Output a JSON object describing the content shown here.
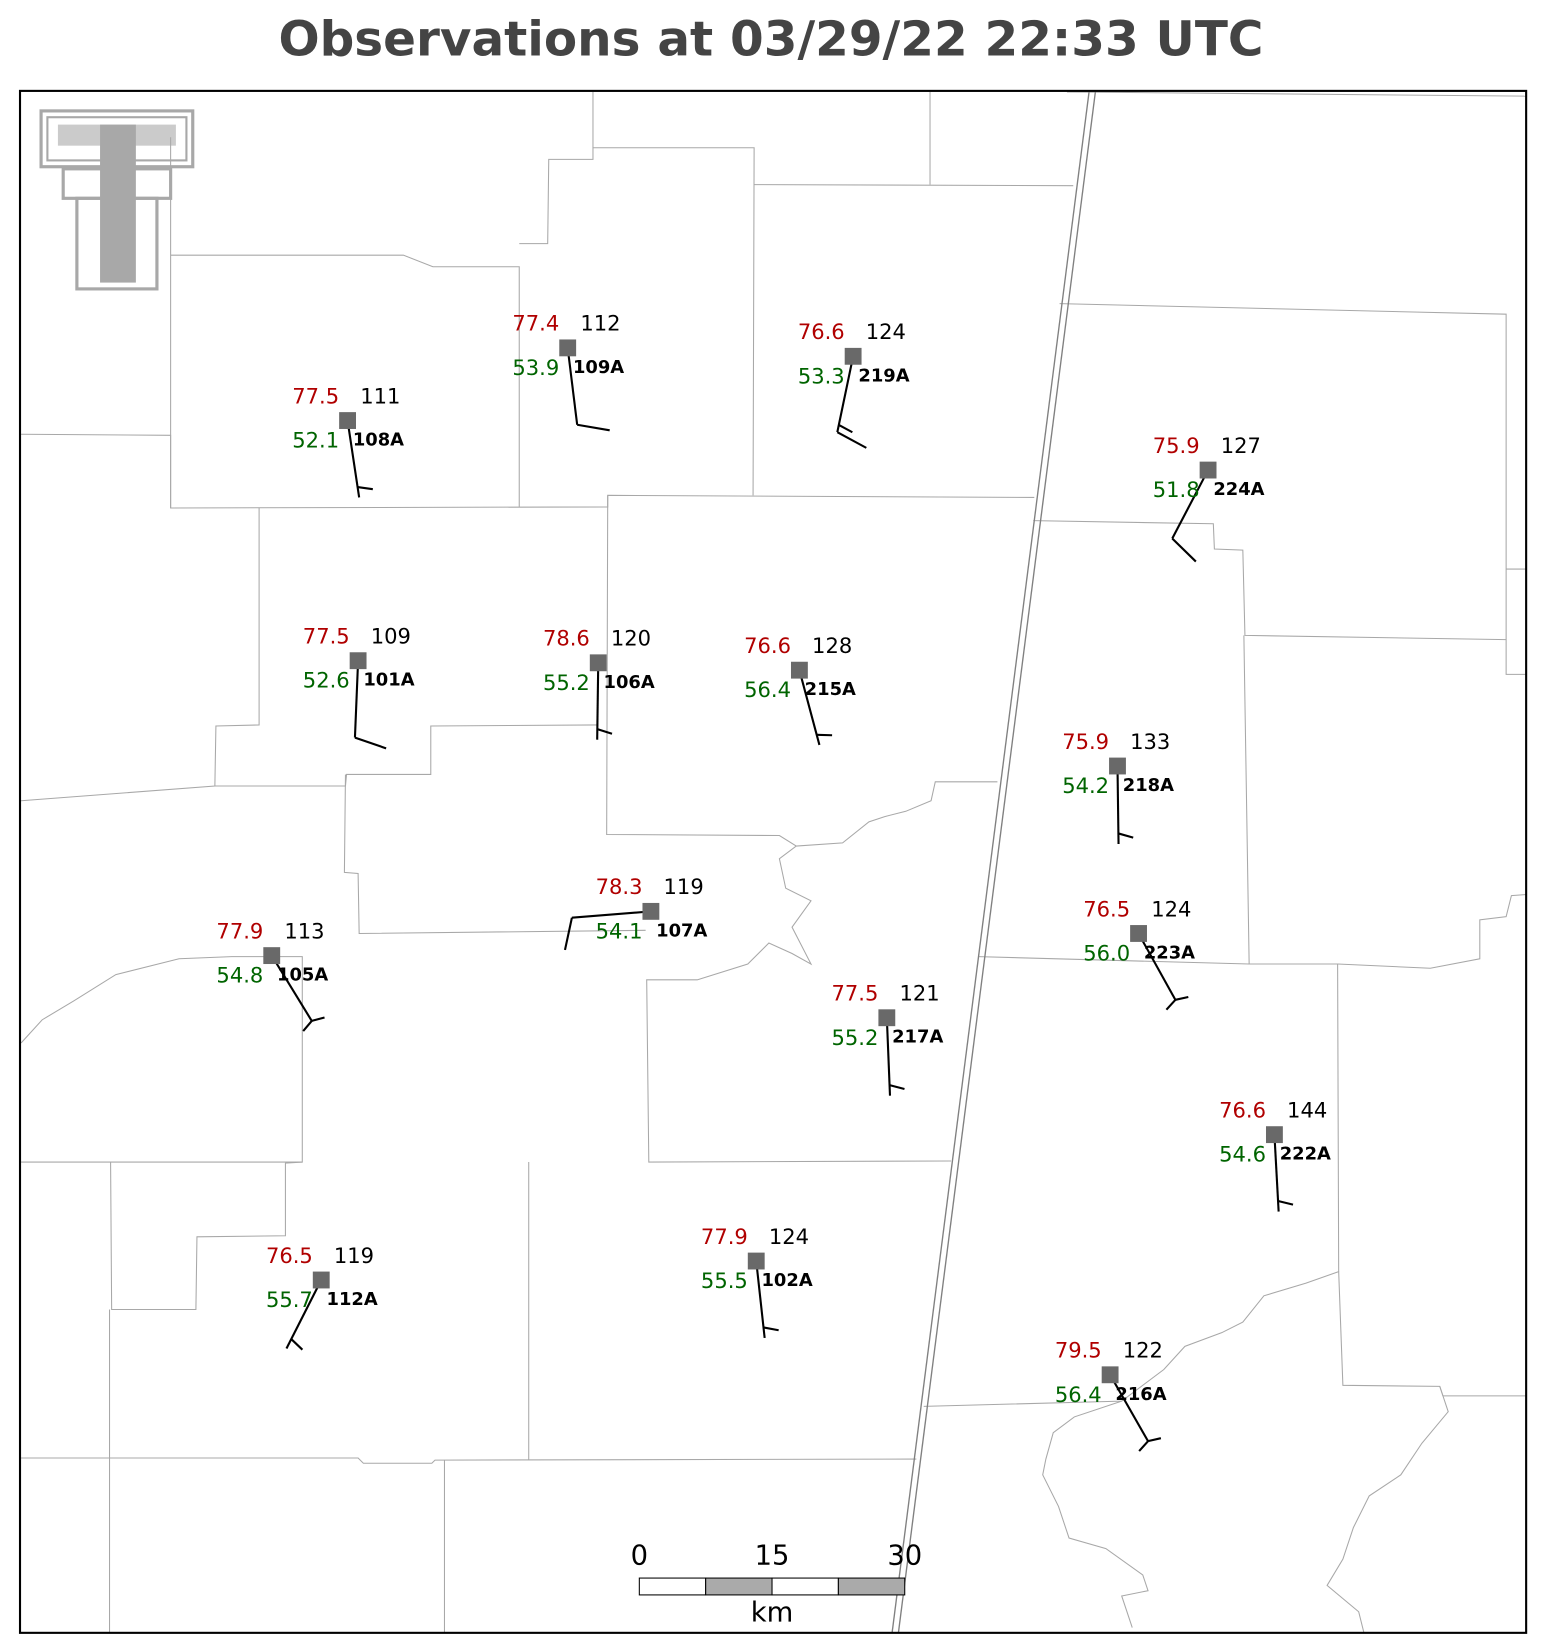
{
  "title": "Observations at 03/29/22 22:33 UTC",
  "stations": [
    {
      "id": "108A",
      "temperature": "77.5",
      "dewpoint": "52.1",
      "value": "111"
    },
    {
      "id": "109A",
      "temperature": "77.4",
      "dewpoint": "53.9",
      "value": "112"
    },
    {
      "id": "219A",
      "temperature": "76.6",
      "dewpoint": "53.3",
      "value": "124"
    },
    {
      "id": "224A",
      "temperature": "75.9",
      "dewpoint": "51.8",
      "value": "127"
    },
    {
      "id": "101A",
      "temperature": "77.5",
      "dewpoint": "52.6",
      "value": "109"
    },
    {
      "id": "106A",
      "temperature": "78.6",
      "dewpoint": "55.2",
      "value": "120"
    },
    {
      "id": "215A",
      "temperature": "76.6",
      "dewpoint": "56.4",
      "value": "128"
    },
    {
      "id": "218A",
      "temperature": "75.9",
      "dewpoint": "54.2",
      "value": "133"
    },
    {
      "id": "107A",
      "temperature": "78.3",
      "dewpoint": "54.1",
      "value": "119"
    },
    {
      "id": "105A",
      "temperature": "77.9",
      "dewpoint": "54.8",
      "value": "113"
    },
    {
      "id": "223A",
      "temperature": "76.5",
      "dewpoint": "56.0",
      "value": "124"
    },
    {
      "id": "217A",
      "temperature": "77.5",
      "dewpoint": "55.2",
      "value": "121"
    },
    {
      "id": "222A",
      "temperature": "76.6",
      "dewpoint": "54.6",
      "value": "144"
    },
    {
      "id": "112A",
      "temperature": "76.5",
      "dewpoint": "55.7",
      "value": "119"
    },
    {
      "id": "102A",
      "temperature": "77.9",
      "dewpoint": "55.5",
      "value": "124"
    },
    {
      "id": "216A",
      "temperature": "79.5",
      "dewpoint": "56.4",
      "value": "122"
    }
  ],
  "scale_bar": {
    "ticks": [
      "0",
      "15",
      "30"
    ],
    "unit": "km"
  }
}
